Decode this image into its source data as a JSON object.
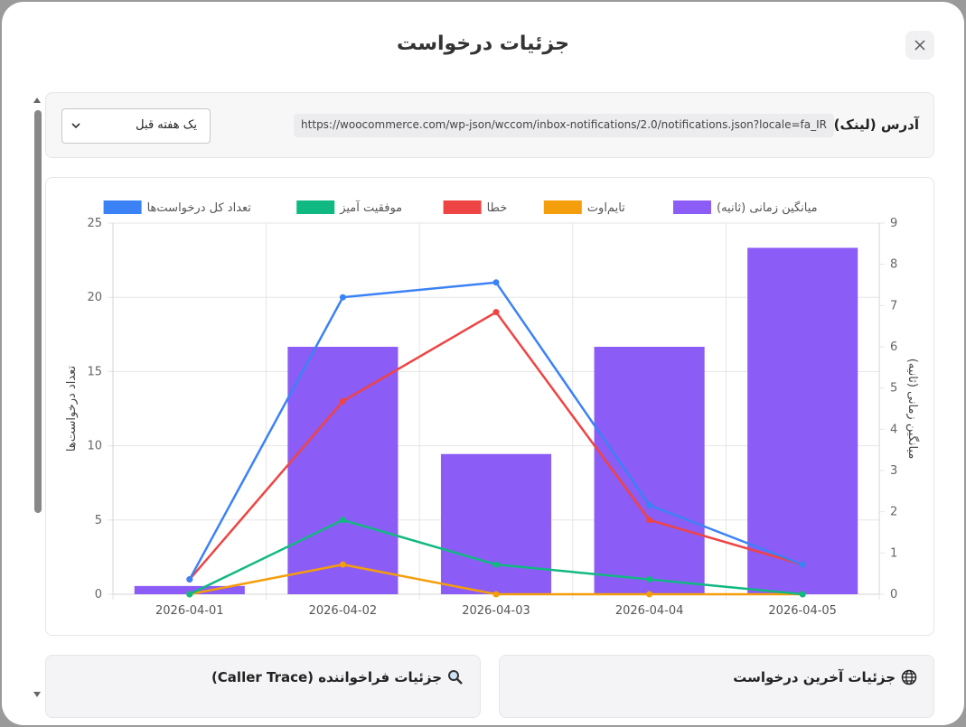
{
  "modal": {
    "title": "جزئیات درخواست"
  },
  "url_section": {
    "label": "آدرس (لینک):",
    "value": "https://woocommerce.com/wp-json/wccom/inbox-notifications/2.0/notifications.json?locale=fa_IR"
  },
  "range_select": {
    "value": "یک هفته قبل"
  },
  "panels": {
    "caller_trace_title": "جزئیات فراخواننده (Caller Trace)",
    "last_request_title": "جزئیات آخرین درخواست"
  },
  "icons": {
    "close": "close-icon",
    "chevron": "chevron-down-icon",
    "search": "search-icon",
    "globe": "globe-icon"
  },
  "chart_data": {
    "type": "bar",
    "categories": [
      "2026-04-01",
      "2026-04-02",
      "2026-04-03",
      "2026-04-04",
      "2026-04-05"
    ],
    "bar_series": {
      "name": "میانگین زمانی (ثانیه)",
      "color": "#8b5cf6",
      "axis": "right",
      "values": [
        0.2,
        6.0,
        3.4,
        6.0,
        8.4
      ]
    },
    "series": [
      {
        "name": "تایم‌اوت",
        "color": "#f59e0b",
        "values": [
          0,
          2,
          0,
          0,
          0
        ]
      },
      {
        "name": "خطا",
        "color": "#ef4444",
        "values": [
          1,
          13,
          19,
          5,
          2
        ]
      },
      {
        "name": "موفقیت آمیز",
        "color": "#10b981",
        "values": [
          0,
          5,
          2,
          1,
          0
        ]
      },
      {
        "name": "تعداد کل درخواست‌ها",
        "color": "#3b82f6",
        "values": [
          1,
          20,
          21,
          6,
          2
        ]
      }
    ],
    "legend_order": [
      {
        "name": "تعداد کل درخواست‌ها",
        "color": "#3b82f6"
      },
      {
        "name": "موفقیت آمیز",
        "color": "#10b981"
      },
      {
        "name": "خطا",
        "color": "#ef4444"
      },
      {
        "name": "تایم‌اوت",
        "color": "#f59e0b"
      },
      {
        "name": "میانگین زمانی (ثانیه)",
        "color": "#8b5cf6"
      }
    ],
    "ylabel_left": "تعداد درخواست‌ها",
    "ylabel_right": "میانگین زمانی (ثانیه)",
    "ylim_left": [
      0,
      25
    ],
    "yticks_left": [
      0,
      5,
      10,
      15,
      20,
      25
    ],
    "ylim_right": [
      0,
      9
    ],
    "yticks_right": [
      0,
      1,
      2,
      3,
      4,
      5,
      6,
      7,
      8,
      9
    ],
    "grid": true,
    "legend_position": "top"
  }
}
